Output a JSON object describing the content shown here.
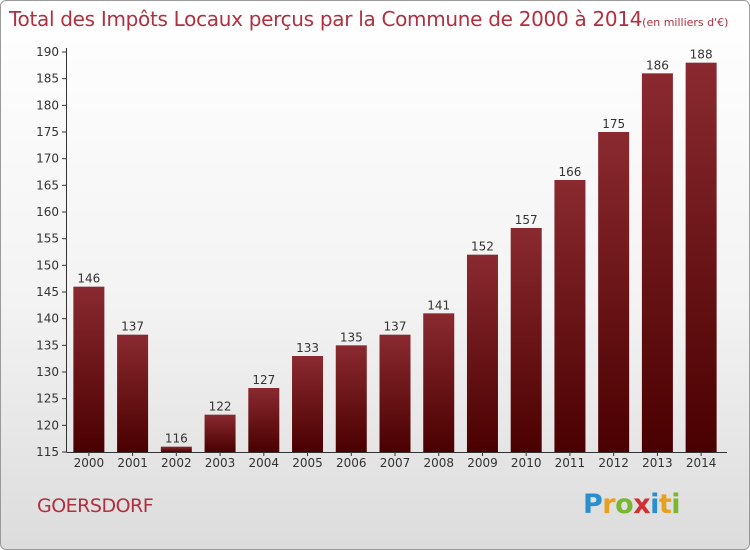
{
  "title": "Total des Impôts Locaux perçus par la Commune de 2000 à 2014",
  "unit": "(en milliers d'€)",
  "commune": "GOERSDORF",
  "logo": {
    "letters": [
      "P",
      "r",
      "o",
      "x",
      "i",
      "t",
      "i"
    ],
    "colors": [
      "#2a8fd0",
      "#e8a020",
      "#7ab630",
      "#d03030",
      "#2a8fd0",
      "#e8a020",
      "#7ab630"
    ]
  },
  "colors": {
    "bar_light": "#8a2a30",
    "bar_dark": "#4a0000",
    "text": "#b03040"
  },
  "chart_data": {
    "type": "bar",
    "title": "Total des Impôts Locaux perçus par la Commune de 2000 à 2014",
    "ylabel": "en milliers d'€",
    "categories": [
      "2000",
      "2001",
      "2002",
      "2003",
      "2004",
      "2005",
      "2006",
      "2007",
      "2008",
      "2009",
      "2010",
      "2011",
      "2012",
      "2013",
      "2014"
    ],
    "values": [
      146,
      137,
      116,
      122,
      127,
      133,
      135,
      137,
      141,
      152,
      157,
      166,
      175,
      186,
      188
    ],
    "ylim": [
      115,
      190
    ],
    "yticks": [
      115,
      120,
      125,
      130,
      135,
      140,
      145,
      150,
      155,
      160,
      165,
      170,
      175,
      180,
      185,
      190
    ],
    "grid": false
  }
}
